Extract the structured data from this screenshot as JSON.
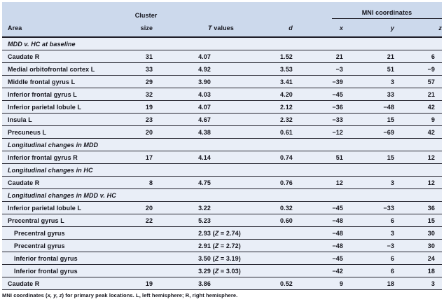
{
  "colors": {
    "header_bg": "#ccd9ec",
    "body_bg": "#e9eef7",
    "rule": "#1c1c26",
    "text": "#14141c",
    "page_bg": "#ffffff"
  },
  "table": {
    "header": {
      "area": "Area",
      "cluster_line1": "Cluster",
      "cluster_line2": "size",
      "t_symbol": "T",
      "t_rest": " values",
      "d": "d",
      "mni_group": "MNI coordinates",
      "x": "x",
      "y": "y",
      "z": "z"
    },
    "z_symbol": "Z",
    "rows": [
      {
        "section": "MDD v. HC at baseline"
      },
      {
        "area": "Caudate R",
        "cluster": "31",
        "t": "4.07",
        "d": "1.52",
        "x": "21",
        "y": "21",
        "z": "6"
      },
      {
        "area": "Medial orbitofrontal cortex L",
        "cluster": "33",
        "t": "4.92",
        "d": "3.53",
        "x": "−3",
        "y": "51",
        "z": "−9"
      },
      {
        "area": "Middle frontal gyrus L",
        "cluster": "29",
        "t": "3.90",
        "d": "3.41",
        "x": "−39",
        "y": "3",
        "z": "57"
      },
      {
        "area": "Inferior frontal gyrus L",
        "cluster": "32",
        "t": "4.03",
        "d": "4.20",
        "x": "−45",
        "y": "33",
        "z": "21"
      },
      {
        "area": "Inferior parietal lobule L",
        "cluster": "19",
        "t": "4.07",
        "d": "2.12",
        "x": "−36",
        "y": "−48",
        "z": "42"
      },
      {
        "area": "Insula L",
        "cluster": "23",
        "t": "4.67",
        "d": "2.32",
        "x": "−33",
        "y": "15",
        "z": "9"
      },
      {
        "area": "Precuneus L",
        "cluster": "20",
        "t": "4.38",
        "d": "0.61",
        "x": "−12",
        "y": "−69",
        "z": "42"
      },
      {
        "section": "Longitudinal changes in MDD"
      },
      {
        "area": "Inferior frontal gyrus R",
        "cluster": "17",
        "t": "4.14",
        "d": "0.74",
        "x": "51",
        "y": "15",
        "z": "12"
      },
      {
        "section": "Longitudinal changes in HC"
      },
      {
        "area": "Caudate R",
        "cluster": "8",
        "t": "4.75",
        "d": "0.76",
        "x": "12",
        "y": "3",
        "z": "12"
      },
      {
        "section": "Longitudinal changes in MDD v. HC"
      },
      {
        "area": "Inferior parietal lobule L",
        "cluster": "20",
        "t": "3.22",
        "d": "0.32",
        "x": "−45",
        "y": "−33",
        "z": "36"
      },
      {
        "area": "Precentral gyrus L",
        "cluster": "22",
        "t": "5.23",
        "d": "0.60",
        "x": "−48",
        "y": "6",
        "z": "15"
      },
      {
        "area": "Precentral gyrus",
        "indent": true,
        "cluster": "",
        "t": "2.93",
        "tz": "2.74",
        "d": "",
        "x": "−48",
        "y": "3",
        "z": "30"
      },
      {
        "area": "Precentral gyrus",
        "indent": true,
        "cluster": "",
        "t": "2.91",
        "tz": "2.72",
        "d": "",
        "x": "−48",
        "y": "−3",
        "z": "30"
      },
      {
        "area": "Inferior frontal gyrus",
        "indent": true,
        "cluster": "",
        "t": "3.50",
        "tz": "3.19",
        "d": "",
        "x": "−45",
        "y": "6",
        "z": "24"
      },
      {
        "area": "Inferior frontal gyrus",
        "indent": true,
        "cluster": "",
        "t": "3.29",
        "tz": "3.03",
        "d": "",
        "x": "−42",
        "y": "6",
        "z": "18"
      },
      {
        "area": "Caudate R",
        "cluster": "19",
        "t": "3.86",
        "d": "0.52",
        "x": "9",
        "y": "18",
        "z": "3"
      }
    ],
    "footnote": {
      "pre": "MNI coordinates (",
      "vars": "x, y, z",
      "post": ") for primary peak locations. L, left hemisphere; R, right hemisphere."
    }
  }
}
